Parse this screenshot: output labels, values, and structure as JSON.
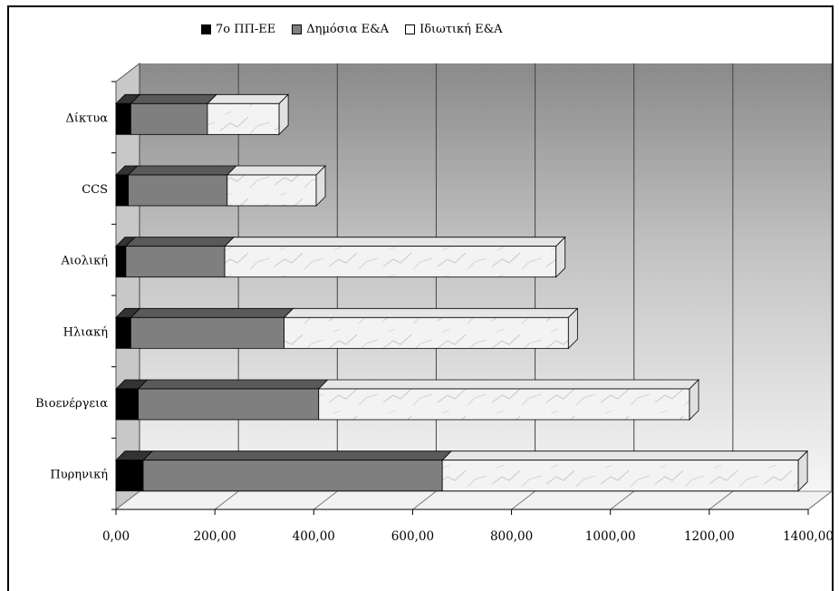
{
  "chart_data": {
    "type": "bar",
    "orientation": "horizontal",
    "stacked": true,
    "three_d": true,
    "categories": [
      "Δίκτυα",
      "CCS",
      "Αιολική",
      "Ηλιακή",
      "Βιοενέργεια",
      "Πυρηνική"
    ],
    "series": [
      {
        "name": "7ο ΠΠ-ΕΕ",
        "color": "#000000",
        "values": [
          30,
          25,
          20,
          30,
          45,
          55
        ]
      },
      {
        "name": "Δημόσια Ε&Α",
        "color": "#7f7f7f",
        "values": [
          155,
          200,
          200,
          310,
          365,
          605
        ]
      },
      {
        "name": "Ιδιωτική Ε&Α",
        "color": "#f2f2f2",
        "values": [
          145,
          180,
          670,
          575,
          750,
          720
        ]
      }
    ],
    "xticks": [
      "0,00",
      "200,00",
      "400,00",
      "600,00",
      "800,00",
      "1000,00",
      "1200,00",
      "1400,00"
    ],
    "xlim": [
      0,
      1400
    ],
    "grid": true,
    "legend_position": "top"
  }
}
